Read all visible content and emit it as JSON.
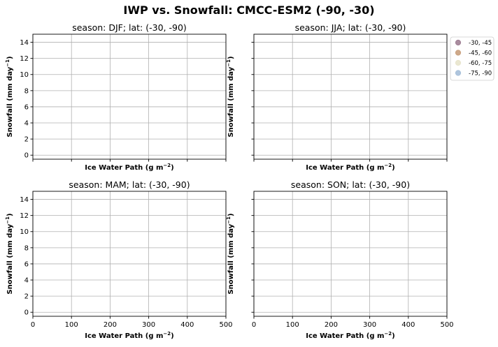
{
  "figure": {
    "title": "IWP vs. Snowfall: CMCC-ESM2  (-90, -30)"
  },
  "chart_data": [
    {
      "type": "scatter",
      "title": "season: DJF; lat: (-30, -90)",
      "xlabel": "Ice Water Path (g m$^{-2}$)",
      "ylabel": "Snowfall (mm day$^{-1}$)",
      "xlim": [
        0,
        500
      ],
      "ylim": [
        -0.5,
        15
      ],
      "xticks": [
        0,
        100,
        200,
        300,
        400,
        500
      ],
      "yticks": [
        0,
        2,
        4,
        6,
        8,
        10,
        12,
        14
      ],
      "show_xticklabels": false,
      "show_yticklabels": true,
      "grid": true,
      "series": [
        {
          "name": "-30, -45",
          "points": []
        },
        {
          "name": "-45, -60",
          "points": []
        },
        {
          "name": "-60, -75",
          "points": []
        },
        {
          "name": "-75, -90",
          "points": []
        }
      ]
    },
    {
      "type": "scatter",
      "title": "season: JJA; lat: (-30, -90)",
      "xlabel": "Ice Water Path (g m$^{-2}$)",
      "ylabel": "Snowfall (mm day$^{-1}$)",
      "xlim": [
        0,
        500
      ],
      "ylim": [
        -0.5,
        15
      ],
      "xticks": [
        0,
        100,
        200,
        300,
        400,
        500
      ],
      "yticks": [
        0,
        2,
        4,
        6,
        8,
        10,
        12,
        14
      ],
      "show_xticklabels": false,
      "show_yticklabels": false,
      "grid": true,
      "series": [
        {
          "name": "-30, -45",
          "points": []
        },
        {
          "name": "-45, -60",
          "points": []
        },
        {
          "name": "-60, -75",
          "points": []
        },
        {
          "name": "-75, -90",
          "points": []
        }
      ]
    },
    {
      "type": "scatter",
      "title": "season: MAM; lat: (-30, -90)",
      "xlabel": "Ice Water Path (g m$^{-2}$)",
      "ylabel": "Snowfall (mm day$^{-1}$)",
      "xlim": [
        0,
        500
      ],
      "ylim": [
        -0.5,
        15
      ],
      "xticks": [
        0,
        100,
        200,
        300,
        400,
        500
      ],
      "yticks": [
        0,
        2,
        4,
        6,
        8,
        10,
        12,
        14
      ],
      "show_xticklabels": true,
      "show_yticklabels": true,
      "grid": true,
      "series": [
        {
          "name": "-30, -45",
          "points": []
        },
        {
          "name": "-45, -60",
          "points": []
        },
        {
          "name": "-60, -75",
          "points": []
        },
        {
          "name": "-75, -90",
          "points": []
        }
      ]
    },
    {
      "type": "scatter",
      "title": "season: SON; lat: (-30, -90)",
      "xlabel": "Ice Water Path (g m$^{-2}$)",
      "ylabel": "Snowfall (mm day$^{-1}$)",
      "xlim": [
        0,
        500
      ],
      "ylim": [
        -0.5,
        15
      ],
      "xticks": [
        0,
        100,
        200,
        300,
        400,
        500
      ],
      "yticks": [
        0,
        2,
        4,
        6,
        8,
        10,
        12,
        14
      ],
      "show_xticklabels": true,
      "show_yticklabels": false,
      "grid": true,
      "series": [
        {
          "name": "-30, -45",
          "points": []
        },
        {
          "name": "-45, -60",
          "points": []
        },
        {
          "name": "-60, -75",
          "points": []
        },
        {
          "name": "-75, -90",
          "points": []
        }
      ]
    }
  ],
  "legend": {
    "placement": "right of top-right panel",
    "items": [
      {
        "label": "-30, -45",
        "color": "#a07f94"
      },
      {
        "label": "-45, -60",
        "color": "#c9a07e"
      },
      {
        "label": "-60, -75",
        "color": "#e8e4cc"
      },
      {
        "label": "-75, -90",
        "color": "#a6bfd9"
      }
    ]
  },
  "style": {
    "grid_color": "#b0b0b0",
    "axis_color": "#000000"
  }
}
